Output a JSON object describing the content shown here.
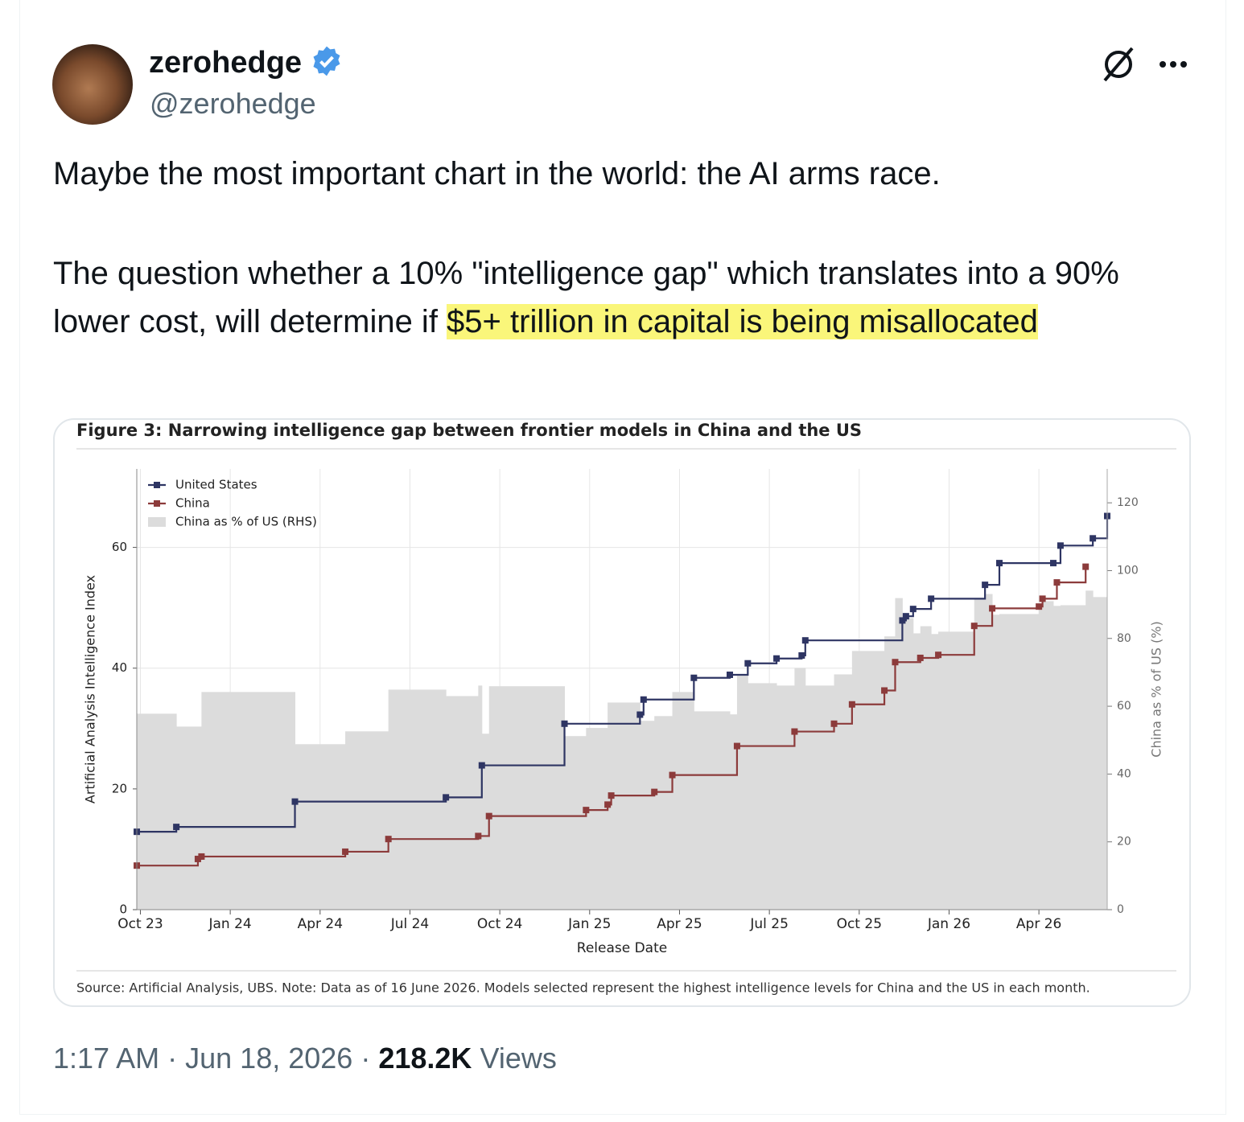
{
  "author": {
    "name": "zerohedge",
    "handle": "@zerohedge"
  },
  "text": {
    "line1": "Maybe the most important chart in the world: the AI arms race.",
    "para2_plain": "The question whether a 10% \"intelligence gap\" which translates into a 90% lower cost, will determine if ",
    "para2_highlight": "$5+ trillion in capital is being misallocated"
  },
  "chart_data": {
    "type": "line",
    "step": "post",
    "title": "Figure 3: Narrowing intelligence gap between frontier models in China and the US",
    "xlabel": "Release Date",
    "ylabel": "Artificial Analysis Intelligence Index",
    "y2label": "China as % of US (%)",
    "source": "Source: Artificial Analysis, UBS. Note: Data as of 16 June 2026. Models selected represent the highest intelligence levels for China and the US in each month.",
    "xlim": [
      2023.74,
      2026.44
    ],
    "xticks": [
      {
        "value": 2023.75,
        "label": "Oct 23"
      },
      {
        "value": 2024.0,
        "label": "Jan 24"
      },
      {
        "value": 2024.25,
        "label": "Apr 24"
      },
      {
        "value": 2024.5,
        "label": "Jul 24"
      },
      {
        "value": 2024.75,
        "label": "Oct 24"
      },
      {
        "value": 2025.0,
        "label": "Jan 25"
      },
      {
        "value": 2025.25,
        "label": "Apr 25"
      },
      {
        "value": 2025.5,
        "label": "Jul 25"
      },
      {
        "value": 2025.75,
        "label": "Oct 25"
      },
      {
        "value": 2026.0,
        "label": "Jan 26"
      },
      {
        "value": 2026.25,
        "label": "Apr 26"
      }
    ],
    "ylim": [
      0,
      73
    ],
    "yticks": [
      0,
      20,
      40,
      60
    ],
    "y2lim": [
      0,
      130
    ],
    "y2ticks": [
      0,
      20,
      40,
      60,
      80,
      100,
      120
    ],
    "grid": true,
    "legend": "upper left",
    "series": [
      {
        "name": "China as % of US (RHS)",
        "type": "area",
        "axis": "y2",
        "color": "#dcdcdc",
        "x": [
          2023.74,
          2023.85,
          2023.92,
          2024.18,
          2024.32,
          2024.44,
          2024.6,
          2024.69,
          2024.7,
          2024.72,
          2024.93,
          2024.99,
          2025.05,
          2025.14,
          2025.18,
          2025.23,
          2025.29,
          2025.39,
          2025.41,
          2025.44,
          2025.52,
          2025.57,
          2025.6,
          2025.68,
          2025.73,
          2025.82,
          2025.85,
          2025.87,
          2025.9,
          2025.92,
          2025.95,
          2025.97,
          2026.07,
          2026.1,
          2026.12,
          2026.14,
          2026.25,
          2026.26,
          2026.29,
          2026.31,
          2026.38,
          2026.4
        ],
        "values": [
          57.8,
          54.0,
          64.2,
          48.8,
          52.6,
          64.9,
          63.0,
          66.1,
          51.9,
          65.9,
          51.2,
          53.6,
          61.1,
          55.7,
          57.1,
          64.2,
          58.5,
          57.6,
          69.0,
          66.8,
          66.1,
          71.3,
          66.1,
          69.4,
          76.3,
          80.6,
          91.9,
          86.0,
          81.5,
          83.6,
          81.3,
          82.0,
          91.5,
          93.1,
          87.0,
          87.2,
          89.1,
          91.0,
          89.6,
          89.8,
          94.1,
          92.2
        ]
      },
      {
        "name": "United States",
        "type": "line",
        "color": "#2e3563",
        "x": [
          2023.74,
          2023.85,
          2024.18,
          2024.6,
          2024.7,
          2024.93,
          2025.14,
          2025.15,
          2025.29,
          2025.39,
          2025.44,
          2025.52,
          2025.59,
          2025.6,
          2025.87,
          2025.88,
          2025.9,
          2025.95,
          2026.1,
          2026.14,
          2026.29,
          2026.31,
          2026.4,
          2026.44
        ],
        "values": [
          12.9,
          13.7,
          17.9,
          18.6,
          23.9,
          30.8,
          32.3,
          34.8,
          38.4,
          38.9,
          40.8,
          41.6,
          42.1,
          44.6,
          47.9,
          48.6,
          49.8,
          51.5,
          53.8,
          57.4,
          57.4,
          60.3,
          61.5,
          65.2
        ]
      },
      {
        "name": "China",
        "type": "line",
        "color": "#8c3b3b",
        "x": [
          2023.74,
          2023.91,
          2023.92,
          2024.32,
          2024.44,
          2024.69,
          2024.72,
          2024.99,
          2025.05,
          2025.06,
          2025.18,
          2025.23,
          2025.41,
          2025.57,
          2025.68,
          2025.73,
          2025.82,
          2025.85,
          2025.92,
          2025.97,
          2026.07,
          2026.12,
          2026.25,
          2026.26,
          2026.3,
          2026.38
        ],
        "values": [
          7.3,
          8.4,
          8.8,
          9.6,
          11.7,
          12.2,
          15.5,
          16.5,
          17.4,
          18.9,
          19.5,
          22.3,
          27.1,
          29.5,
          30.8,
          34.0,
          36.3,
          41.0,
          41.7,
          42.2,
          47.0,
          49.9,
          50.2,
          51.5,
          54.2,
          56.8
        ]
      }
    ]
  },
  "footer": {
    "time": "1:17 AM",
    "separator": "·",
    "date": "Jun 18, 2026",
    "views": "218.2K",
    "views_label": "Views"
  }
}
